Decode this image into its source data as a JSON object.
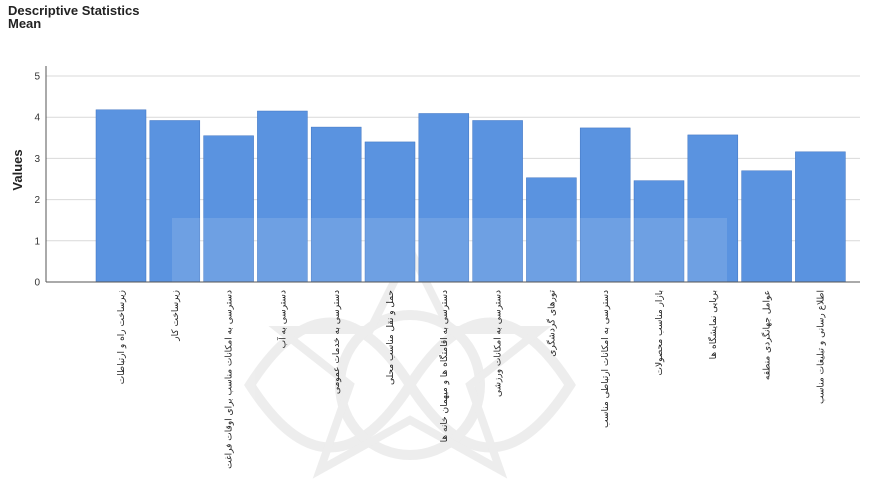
{
  "chart_data": {
    "type": "bar",
    "title": "Descriptive Statistics",
    "subtitle": "Mean",
    "ylabel": "Values",
    "xlabel": "",
    "ylim": [
      0,
      5
    ],
    "yticks": [
      0,
      1,
      2,
      3,
      4,
      5
    ],
    "grid": true,
    "legend": "none",
    "categories": [
      "زیرساخت راه و ارتباطات",
      "زیرساخت کار",
      "دسترسی به امکانات مناسب برای اوقات فراغت",
      "دسترسی به آب",
      "دسترسی به خدمات عمومی",
      "حمل و نقل مناسب محلی",
      "دسترسی به اقامتگاه ها و میهمان خانه ها",
      "دسترسی به امکانات ورزشی",
      "تورهای گردشگری",
      "دسترسی به امکانات ارتباطی مناسب",
      "بازار مناسب محصولات",
      "برپایی نمایشگاه ها",
      "عوامل جهانگردی منطقه",
      "اطلاع رسانی و تبلیغات مناسب"
    ],
    "values": [
      4.18,
      3.92,
      3.55,
      4.15,
      3.76,
      3.4,
      4.09,
      3.92,
      2.53,
      3.74,
      2.46,
      3.57,
      2.7,
      3.16
    ],
    "colors": {
      "bar": "#5a93e0",
      "bar_stroke": "#3f73c0",
      "grid": "#d9d9d9",
      "axis": "#555555"
    }
  }
}
